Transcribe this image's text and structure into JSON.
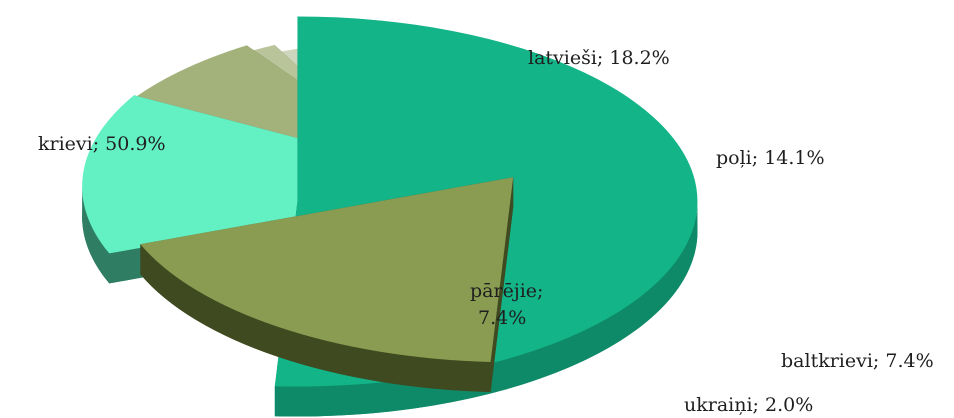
{
  "chart_data": {
    "type": "pie",
    "title": "",
    "slices": [
      {
        "label": "krievi",
        "value": 50.9,
        "display": "krievi; 50.9%",
        "color": "#13b488",
        "side": "#0f8a68"
      },
      {
        "label": "latvieši",
        "value": 18.2,
        "display": "latvieši; 18.2%",
        "color": "#8a9c52",
        "side": "#3f4a20"
      },
      {
        "label": "poļi",
        "value": 14.1,
        "display": "poļi; 14.1%",
        "color": "#63f0c3",
        "side": "#2f7d63"
      },
      {
        "label": "baltkrievi",
        "value": 7.4,
        "display": "baltkrievi; 7.4%",
        "color": "#a2b27a",
        "side": "#4c5630"
      },
      {
        "label": "ukraiņi",
        "value": 2.0,
        "display": "ukraiņi; 2.0%",
        "color": "#b9c49b",
        "side": "#4f5440"
      },
      {
        "label": "pārējie",
        "value": 7.4,
        "display_lines": [
          "pārējie;",
          "7.4%"
        ],
        "color": "#cdd5bd",
        "side": "#6d7462"
      }
    ],
    "legend": "none",
    "style": "exploded 3D pie"
  }
}
